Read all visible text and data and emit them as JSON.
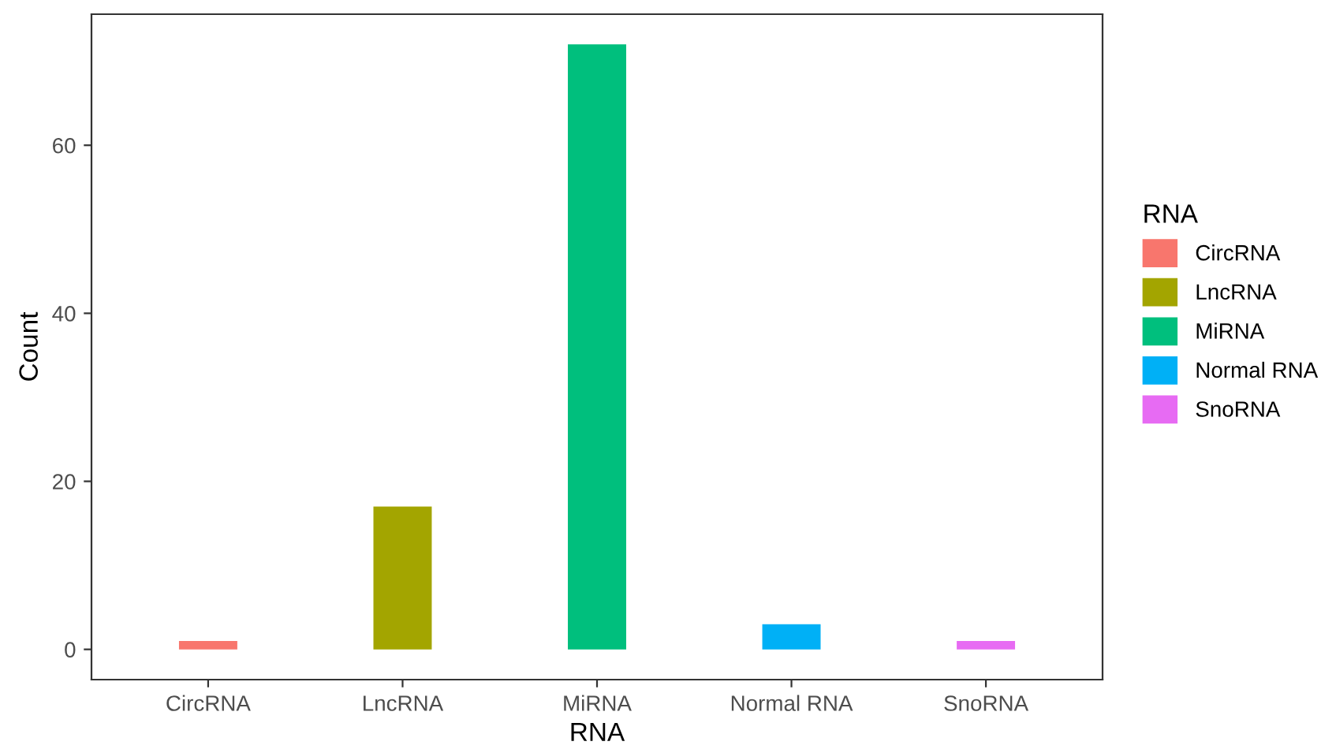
{
  "chart_data": {
    "type": "bar",
    "xlabel": "RNA",
    "ylabel": "Count",
    "legend_title": "RNA",
    "categories": [
      "CircRNA",
      "LncRNA",
      "MiRNA",
      "Normal RNA",
      "SnoRNA"
    ],
    "series": [
      {
        "name": "CircRNA",
        "color": "#f8766d",
        "values": [
          1,
          null,
          null,
          null,
          null
        ]
      },
      {
        "name": "LncRNA",
        "color": "#a3a500",
        "values": [
          null,
          17,
          null,
          null,
          null
        ]
      },
      {
        "name": "MiRNA",
        "color": "#00bf7d",
        "values": [
          null,
          null,
          72,
          null,
          null
        ]
      },
      {
        "name": "Normal RNA",
        "color": "#00b0f6",
        "values": [
          null,
          null,
          null,
          3,
          null
        ]
      },
      {
        "name": "SnoRNA",
        "color": "#e76bf3",
        "values": [
          null,
          null,
          null,
          null,
          1
        ]
      }
    ],
    "ylim": [
      -3.6,
      75.6
    ],
    "yticks": [
      0,
      20,
      40,
      60
    ],
    "grid": false,
    "legend": "right"
  }
}
